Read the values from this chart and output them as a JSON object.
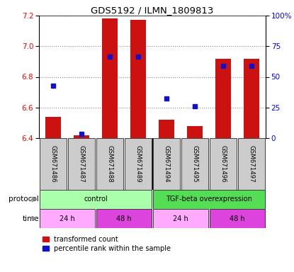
{
  "title": "GDS5192 / ILMN_1809813",
  "samples": [
    "GSM671486",
    "GSM671487",
    "GSM671488",
    "GSM671489",
    "GSM671494",
    "GSM671495",
    "GSM671496",
    "GSM671497"
  ],
  "red_values": [
    6.54,
    6.42,
    7.18,
    7.17,
    6.52,
    6.48,
    6.92,
    6.92
  ],
  "blue_values": [
    6.74,
    6.43,
    6.93,
    6.93,
    6.66,
    6.61,
    6.87,
    6.87
  ],
  "ylim_left": [
    6.4,
    7.2
  ],
  "ylim_right": [
    0,
    100
  ],
  "yticks_left": [
    6.4,
    6.6,
    6.8,
    7.0,
    7.2
  ],
  "yticks_right": [
    0,
    25,
    50,
    75,
    100
  ],
  "ytick_labels_right": [
    "0",
    "25",
    "50",
    "75",
    "100%"
  ],
  "bar_color": "#cc1111",
  "dot_color": "#1111cc",
  "bar_bottom": 6.4,
  "protocol_color_control": "#aaffaa",
  "protocol_color_tgf": "#55dd55",
  "time_color_light": "#ffaaff",
  "time_color_dark": "#dd44dd",
  "label_area_color": "#cccccc",
  "legend_red": "transformed count",
  "legend_blue": "percentile rank within the sample"
}
